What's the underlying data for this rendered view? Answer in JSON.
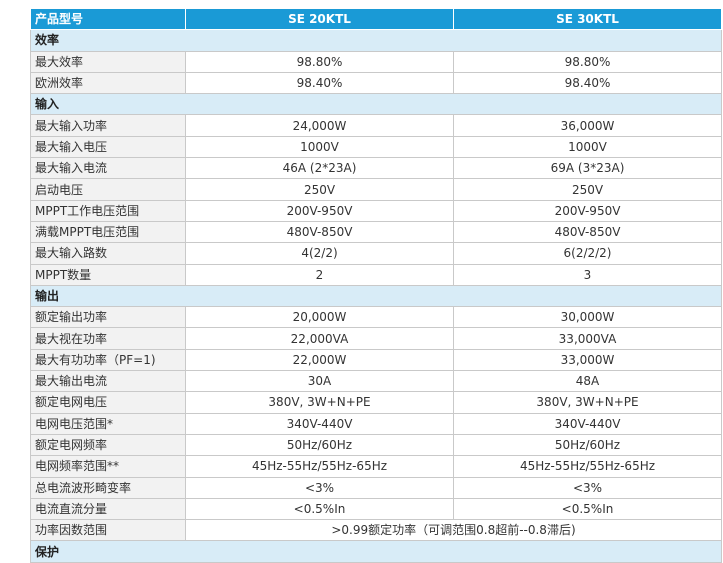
{
  "table": {
    "header": [
      "产品型号",
      "SE 20KTL",
      "SE 30KTL"
    ],
    "sections": [
      {
        "title": "效率",
        "rows": [
          [
            "最大效率",
            "98.80%",
            "98.80%"
          ],
          [
            "欧洲效率",
            "98.40%",
            "98.40%"
          ]
        ]
      },
      {
        "title": "输入",
        "rows": [
          [
            "最大输入功率",
            "24,000W",
            "36,000W"
          ],
          [
            "最大输入电压",
            "1000V",
            "1000V"
          ],
          [
            "最大输入电流",
            "46A (2*23A)",
            "69A (3*23A)"
          ],
          [
            "启动电压",
            "250V",
            "250V"
          ],
          [
            "MPPT工作电压范围",
            "200V-950V",
            "200V-950V"
          ],
          [
            "满载MPPT电压范围",
            "480V-850V",
            "480V-850V"
          ],
          [
            "最大输入路数",
            "4(2/2)",
            "6(2/2/2)"
          ],
          [
            "MPPT数量",
            "2",
            "3"
          ]
        ]
      },
      {
        "title": "输出",
        "rows": [
          [
            "额定输出功率",
            "20,000W",
            "30,000W"
          ],
          [
            "最大视在功率",
            "22,000VA",
            "33,000VA"
          ],
          [
            "最大有功功率（PF=1)",
            "22,000W",
            "33,000W"
          ],
          [
            "最大输出电流",
            "30A",
            "48A"
          ],
          [
            "额定电网电压",
            "380V, 3W+N+PE",
            "380V, 3W+N+PE"
          ],
          [
            "电网电压范围*",
            "340V-440V",
            "340V-440V"
          ],
          [
            "额定电网频率",
            "50Hz/60Hz",
            "50Hz/60Hz"
          ],
          [
            "电网频率范围**",
            "45Hz-55Hz/55Hz-65Hz",
            "45Hz-55Hz/55Hz-65Hz"
          ],
          [
            "总电流波形畸变率",
            "<3%",
            "<3%"
          ],
          [
            "电流直流分量",
            "<0.5%In",
            "<0.5%In"
          ],
          [
            "功率因数范围",
            ">0.99额定功率（可调范围0.8超前--0.8滞后)"
          ]
        ]
      },
      {
        "title": "保护",
        "rows": []
      }
    ]
  }
}
